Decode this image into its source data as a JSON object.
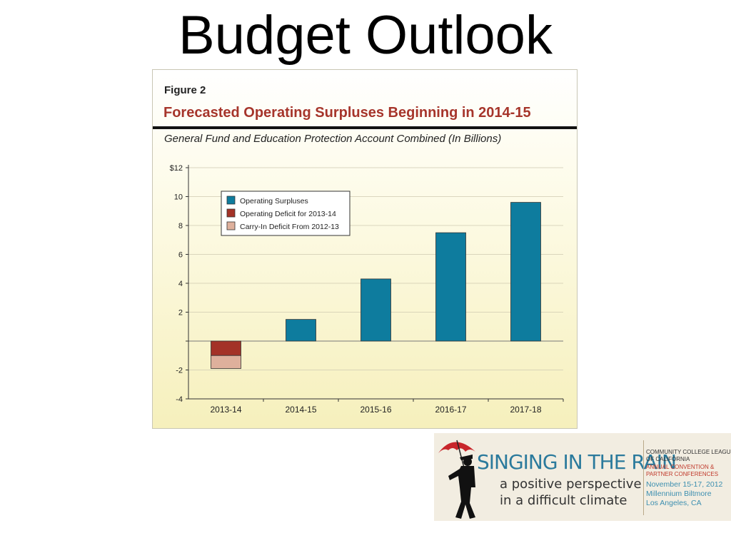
{
  "slide": {
    "title": "Budget Outlook"
  },
  "figure": {
    "label": "Figure 2",
    "title": "Forecasted Operating Surpluses Beginning in 2014-15",
    "subtitle": "General Fund and Education Protection Account Combined (In Billions)"
  },
  "chart_data": {
    "type": "bar",
    "stacked": true,
    "categories": [
      "2013-14",
      "2014-15",
      "2015-16",
      "2016-17",
      "2017-18"
    ],
    "series": [
      {
        "name": "Operating Surpluses",
        "color": "#0e7c9e",
        "values": [
          0,
          1.5,
          4.3,
          7.5,
          9.6
        ]
      },
      {
        "name": "Operating Deficit for 2013-14",
        "color": "#a33227",
        "values": [
          -1.0,
          0,
          0,
          0,
          0
        ]
      },
      {
        "name": "Carry-In Deficit From 2012-13",
        "color": "#deb09c",
        "values": [
          -0.9,
          0,
          0,
          0,
          0
        ]
      }
    ],
    "yticks": [
      12,
      10,
      8,
      6,
      4,
      2,
      0,
      -2,
      -4
    ],
    "ytick_labels": [
      "$12",
      "10",
      "8",
      "6",
      "4",
      "2",
      "",
      "-2",
      "-4"
    ],
    "ylim": [
      -4,
      12
    ],
    "grid": true,
    "legend_position": "top-left"
  },
  "logo": {
    "main": "SINGING IN THE RAIN",
    "sub_line1": "a positive perspective",
    "sub_line2": "in a difficult climate",
    "org_line1": "COMMUNITY COLLEGE LEAGUE",
    "org_line2": "OF CALIFORNIA",
    "conf_line1": "ANNUAL CONVENTION &",
    "conf_line2": "PARTNER CONFERENCES",
    "dates": "November 15-17, 2012",
    "venue": "Millennium Biltmore",
    "city": "Los Angeles, CA",
    "colors": {
      "main": "#2b7a9c",
      "umbrella": "#c8262b",
      "figure": "#111111"
    }
  }
}
